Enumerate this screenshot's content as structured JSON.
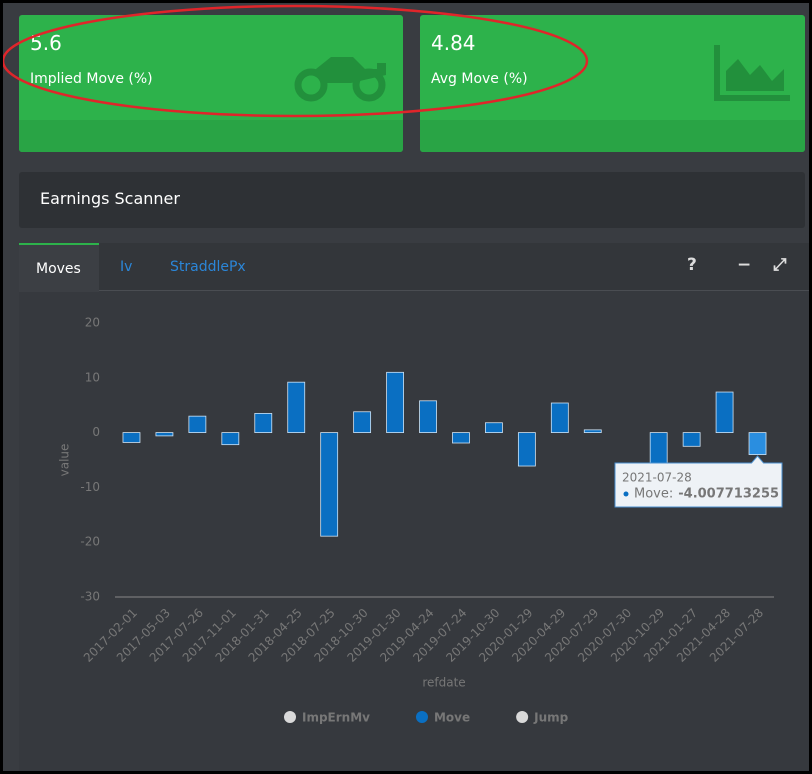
{
  "cards": [
    {
      "value": "5.6",
      "label": "Implied Move (%)"
    },
    {
      "value": "4.84",
      "label": "Avg Move (%)"
    }
  ],
  "panel": {
    "title": "Earnings Scanner"
  },
  "tabs": [
    "Moves",
    "Iv",
    "StraddlePx"
  ],
  "toolbar": {
    "help": "?",
    "minimize": "−",
    "expand": "⤢"
  },
  "chart_data": {
    "type": "bar",
    "xlabel": "refdate",
    "ylabel": "value",
    "categories": [
      "2017-02-01",
      "2017-05-03",
      "2017-07-26",
      "2017-11-01",
      "2018-01-31",
      "2018-04-25",
      "2018-07-25",
      "2018-10-30",
      "2019-01-30",
      "2019-04-24",
      "2019-07-24",
      "2019-10-30",
      "2020-01-29",
      "2020-04-29",
      "2020-07-29",
      "2020-07-30",
      "2020-10-29",
      "2021-01-27",
      "2021-04-28",
      "2021-07-28"
    ],
    "series": [
      {
        "name": "ImpErnMv",
        "color": "#d9d9d9"
      },
      {
        "name": "Move",
        "color": "#0a6fc2",
        "values": [
          -1.8,
          -0.6,
          3,
          -2.2,
          3.5,
          9.2,
          -18.9,
          3.8,
          11,
          5.8,
          -1.9,
          1.8,
          -6.1,
          5.4,
          0.5,
          null,
          -6.5,
          -2.5,
          7.4,
          -4.007713255
        ]
      },
      {
        "name": "Jump",
        "color": "#d9d9d9"
      }
    ],
    "ylim": [
      -30,
      20
    ],
    "yticks": [
      -30,
      -20,
      -10,
      0,
      10,
      20
    ],
    "grid": false,
    "tooltip": {
      "category_index": 19,
      "series_index": 1,
      "label": "Move:"
    }
  }
}
